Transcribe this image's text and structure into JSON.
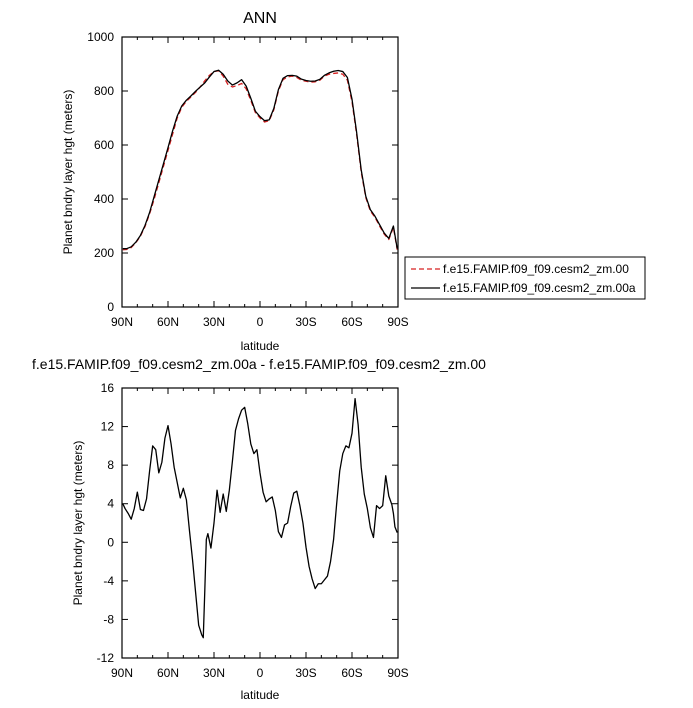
{
  "chart_data": [
    {
      "type": "line",
      "title": "ANN",
      "xlabel": "latitude",
      "ylabel": "Planet bndry layer hgt (meters)",
      "xlim": [
        90,
        -90
      ],
      "ylim": [
        0,
        1000
      ],
      "xticks": [
        90,
        60,
        30,
        0,
        -30,
        -60,
        -90
      ],
      "xtick_labels": [
        "90N",
        "60N",
        "30N",
        "0",
        "30S",
        "60S",
        "90S"
      ],
      "yticks": [
        0,
        200,
        400,
        600,
        800,
        1000
      ],
      "ytick_labels": [
        "0",
        "200",
        "400",
        "600",
        "800",
        "1000"
      ],
      "grid": false,
      "legend_position": "right",
      "series": [
        {
          "name": "f.e15.FAMIP.f09_f09.cesm2_zm.00",
          "color": "#d62020",
          "dash": "dashed",
          "x": [
            89.5,
            87,
            84,
            81,
            78,
            75,
            72,
            69,
            66,
            63,
            60,
            57,
            54,
            51,
            48,
            45,
            42,
            39,
            36,
            33,
            30,
            27,
            24,
            21,
            18,
            15,
            12,
            9,
            6,
            3,
            0,
            -3,
            -6,
            -9,
            -12,
            -15,
            -18,
            -21,
            -24,
            -27,
            -30,
            -33,
            -36,
            -39,
            -42,
            -45,
            -48,
            -51,
            -54,
            -57,
            -60,
            -63,
            -66,
            -69,
            -72,
            -75,
            -78,
            -81,
            -84,
            -87,
            -89.5
          ],
          "y": [
            212,
            213,
            220,
            238,
            262,
            298,
            345,
            400,
            460,
            520,
            580,
            640,
            700,
            740,
            762,
            778,
            795,
            815,
            838,
            858,
            872,
            875,
            855,
            825,
            815,
            820,
            828,
            808,
            765,
            720,
            700,
            685,
            690,
            730,
            800,
            842,
            852,
            855,
            850,
            840,
            836,
            833,
            834,
            840,
            855,
            862,
            865,
            867,
            862,
            840,
            760,
            640,
            500,
            405,
            355,
            332,
            300,
            270,
            250,
            295,
            212
          ]
        },
        {
          "name": "f.e15.FAMIP.f09_f09.cesm2_zm.00a",
          "color": "#000000",
          "dash": "solid",
          "x": [
            89.5,
            87,
            84,
            81,
            78,
            75,
            72,
            69,
            66,
            63,
            60,
            57,
            54,
            51,
            48,
            45,
            42,
            39,
            36,
            33,
            30,
            27,
            24,
            21,
            18,
            15,
            12,
            9,
            6,
            3,
            0,
            -3,
            -6,
            -9,
            -12,
            -15,
            -18,
            -21,
            -24,
            -27,
            -30,
            -33,
            -36,
            -39,
            -42,
            -45,
            -48,
            -51,
            -54,
            -57,
            -60,
            -63,
            -66,
            -69,
            -72,
            -75,
            -78,
            -81,
            -84,
            -87,
            -89.5
          ],
          "y": [
            216,
            216,
            223,
            240,
            265,
            302,
            350,
            410,
            470,
            530,
            590,
            652,
            707,
            745,
            766,
            782,
            799,
            815,
            830,
            852,
            872,
            877,
            862,
            837,
            822,
            830,
            842,
            818,
            773,
            725,
            705,
            690,
            693,
            735,
            805,
            847,
            857,
            858,
            855,
            844,
            839,
            836,
            837,
            843,
            858,
            867,
            873,
            876,
            872,
            850,
            770,
            648,
            508,
            410,
            360,
            336,
            305,
            274,
            254,
            300,
            216
          ]
        }
      ]
    },
    {
      "type": "line",
      "title": "f.e15.FAMIP.f09_f09.cesm2_zm.00a - f.e15.FAMIP.f09_f09.cesm2_zm.00",
      "xlabel": "latitude",
      "ylabel": "Planet bndry layer hgt (meters)",
      "xlim": [
        90,
        -90
      ],
      "ylim": [
        -12,
        16
      ],
      "xticks": [
        90,
        60,
        30,
        0,
        -30,
        -60,
        -90
      ],
      "xtick_labels": [
        "90N",
        "60N",
        "30N",
        "0",
        "30S",
        "60S",
        "90S"
      ],
      "yticks": [
        -12,
        -8,
        -4,
        0,
        4,
        8,
        12,
        16
      ],
      "ytick_labels": [
        "-12",
        "-8",
        "-4",
        "0",
        "4",
        "8",
        "12",
        "16"
      ],
      "grid": false,
      "series": [
        {
          "color": "#000000",
          "dash": "solid",
          "x": [
            89.5,
            88,
            86,
            84,
            82,
            80,
            78,
            76,
            74,
            72,
            70,
            68,
            66,
            64,
            62,
            60,
            58,
            56,
            54,
            52,
            50,
            48,
            46,
            44,
            42,
            40,
            38,
            37,
            36,
            35,
            34,
            32,
            30,
            28,
            26,
            24,
            22,
            20,
            18,
            16,
            14,
            12,
            10,
            8,
            6,
            4,
            2,
            0,
            -2,
            -4,
            -6,
            -8,
            -10,
            -12,
            -14,
            -16,
            -18,
            -20,
            -22,
            -24,
            -26,
            -28,
            -30,
            -32,
            -34,
            -36,
            -38,
            -40,
            -42,
            -44,
            -46,
            -48,
            -50,
            -52,
            -54,
            -56,
            -58,
            -60,
            -62,
            -64,
            -66,
            -68,
            -70,
            -72,
            -74,
            -76,
            -78,
            -80,
            -82,
            -84,
            -86,
            -87,
            -88,
            -89.5
          ],
          "y": [
            4.0,
            3.5,
            3.0,
            2.4,
            3.5,
            5.2,
            3.4,
            3.3,
            4.5,
            7.4,
            10.0,
            9.6,
            7.2,
            8.3,
            10.8,
            12.1,
            10.2,
            7.8,
            6.2,
            4.6,
            5.6,
            4.4,
            1.2,
            -1.8,
            -5.2,
            -8.6,
            -9.6,
            -9.9,
            -5.0,
            0.3,
            0.9,
            -0.6,
            2.0,
            5.4,
            3.1,
            5.0,
            3.2,
            5.4,
            8.4,
            11.6,
            12.8,
            13.7,
            14.0,
            12.3,
            10.2,
            9.2,
            9.6,
            7.2,
            5.2,
            4.2,
            4.5,
            4.7,
            3.3,
            1.1,
            0.5,
            1.8,
            2.0,
            3.7,
            5.1,
            5.3,
            3.8,
            2.0,
            -0.5,
            -2.5,
            -3.8,
            -4.8,
            -4.3,
            -4.3,
            -3.9,
            -3.5,
            -2.0,
            0.3,
            4.0,
            7.4,
            9.2,
            10.0,
            9.8,
            11.3,
            14.9,
            12.2,
            7.8,
            5.0,
            3.5,
            1.5,
            0.5,
            3.8,
            3.5,
            3.8,
            6.9,
            4.8,
            3.9,
            3.0,
            1.6,
            1.0
          ]
        }
      ]
    }
  ]
}
